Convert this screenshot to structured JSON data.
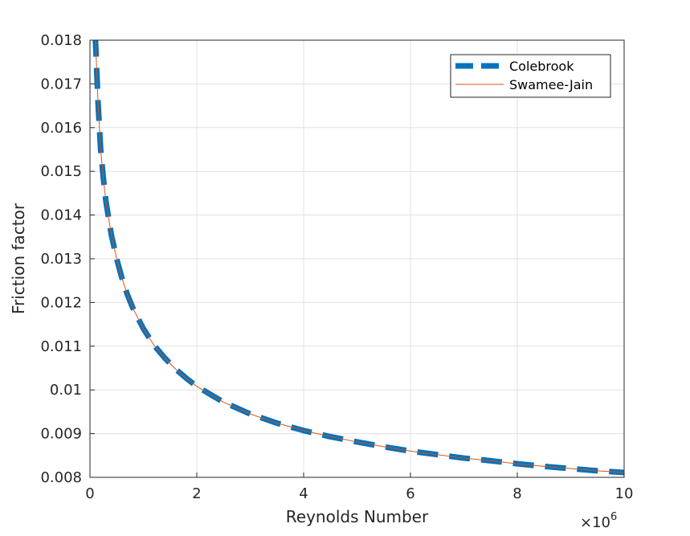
{
  "chart_data": {
    "type": "line",
    "xlabel": "Reynolds Number",
    "ylabel": "Friction factor",
    "x_exponent_base": "×10",
    "x_exponent_power": "6",
    "xlim": [
      0,
      10
    ],
    "ylim": [
      0.008,
      0.018
    ],
    "x_ticks": [
      "0",
      "2",
      "4",
      "6",
      "8",
      "10"
    ],
    "y_ticks": [
      "0.008",
      "0.009",
      "0.01",
      "0.011",
      "0.012",
      "0.013",
      "0.014",
      "0.015",
      "0.016",
      "0.017",
      "0.018"
    ],
    "grid": true,
    "legend_position": "top-right",
    "x": [
      0.1,
      0.15,
      0.2,
      0.25,
      0.3,
      0.4,
      0.5,
      0.6,
      0.7,
      0.8,
      1.0,
      1.2,
      1.4,
      1.6,
      1.8,
      2.0,
      2.5,
      3.0,
      3.5,
      4.0,
      4.5,
      5.0,
      5.5,
      6.0,
      6.5,
      7.0,
      7.5,
      8.0,
      8.5,
      9.0,
      9.5,
      10.0
    ],
    "series": [
      {
        "name": "Colebrook",
        "color": "#0072BD",
        "style": "dashed-thick",
        "values": [
          0.0181,
          0.0166,
          0.0155,
          0.01485,
          0.0143,
          0.01355,
          0.013,
          0.01255,
          0.01218,
          0.01188,
          0.0114,
          0.01102,
          0.01073,
          0.01048,
          0.01027,
          0.01008,
          0.00972,
          0.00945,
          0.00924,
          0.00907,
          0.00893,
          0.00881,
          0.0087,
          0.0086,
          0.00852,
          0.00844,
          0.00838,
          0.00831,
          0.00825,
          0.0082,
          0.00815,
          0.00811
        ]
      },
      {
        "name": "Swamee-Jain",
        "color": "#D95319",
        "style": "solid-thin",
        "values": [
          0.0181,
          0.0166,
          0.0155,
          0.01485,
          0.0143,
          0.01355,
          0.013,
          0.01255,
          0.01218,
          0.01188,
          0.0114,
          0.01102,
          0.01073,
          0.01048,
          0.01027,
          0.01008,
          0.00972,
          0.00945,
          0.00924,
          0.00907,
          0.00893,
          0.00881,
          0.0087,
          0.0086,
          0.00852,
          0.00844,
          0.00838,
          0.00831,
          0.00825,
          0.0082,
          0.00815,
          0.00811
        ]
      }
    ]
  }
}
